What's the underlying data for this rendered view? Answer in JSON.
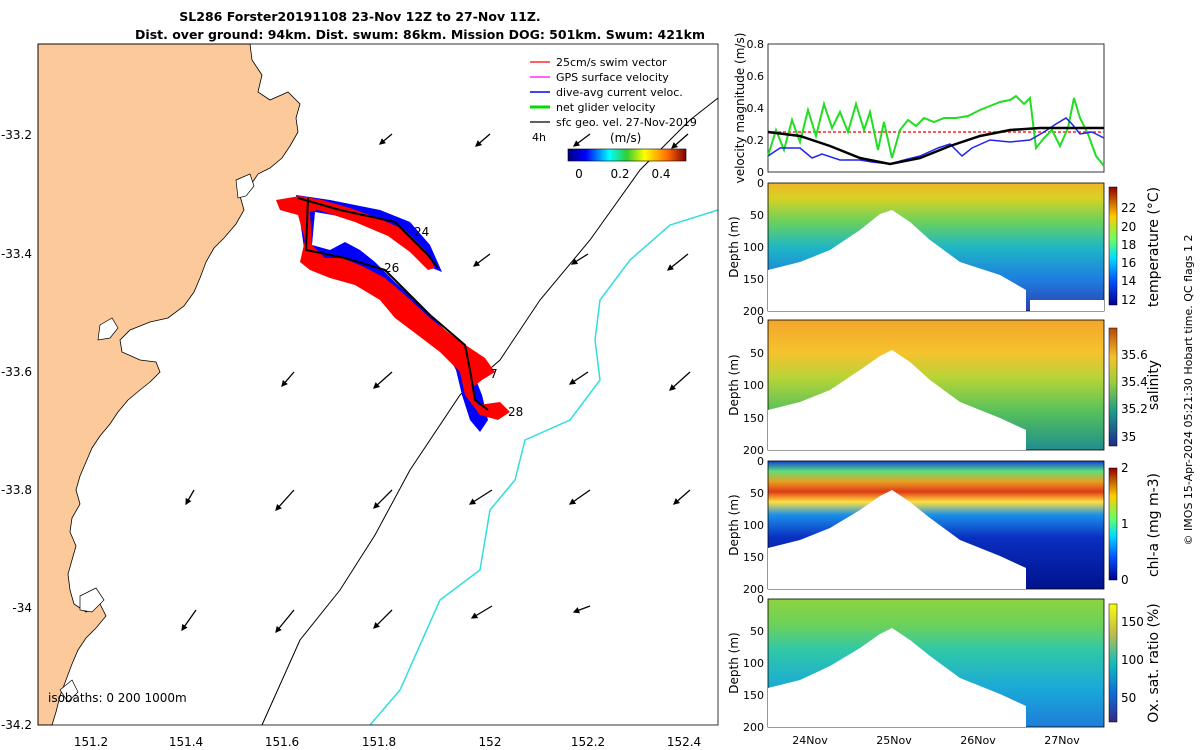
{
  "title": {
    "line1": "SL286 Forster20191108 23-Nov 12Z to 27-Nov 11Z.",
    "line2": "Dist. over ground: 94km. Dist. swum: 86km. Mission DOG: 501km. Swum: 421km"
  },
  "map": {
    "lat_ticks": [
      "-33.2",
      "-33.4",
      "-33.6",
      "-33.8",
      "-34",
      "-34.2"
    ],
    "lon_ticks": [
      "151.2",
      "151.4",
      "151.6",
      "151.8",
      "152",
      "152.2",
      "152.4"
    ],
    "isobaths_label": "isobaths: 0   200   1000m",
    "day_markers": [
      "24",
      "26",
      "7",
      "28"
    ],
    "colors": {
      "land": "#FBC99A",
      "isobath_200": "#000000",
      "isobath_1000": "#33DDDD",
      "swim": "#FF0000",
      "current": "#0000FF"
    }
  },
  "legend": {
    "items": [
      {
        "label": "25cm/s swim vector",
        "color": "#FF0000"
      },
      {
        "label": "GPS surface velocity",
        "color": "#FF00FF"
      },
      {
        "label": "dive-avg current veloc.",
        "color": "#0000FF"
      },
      {
        "label": "net glider velocity",
        "color": "#00DD00"
      },
      {
        "label": "sfc geo. vel. 27-Nov-2019",
        "color": "#000000"
      }
    ],
    "time_label": "4h",
    "colorbar_title": "(m/s)",
    "colorbar_ticks": [
      "0",
      "0.2",
      "0.4"
    ]
  },
  "panels": {
    "velocity": {
      "ylabel": "velocity magnitude (m/s)",
      "yticks": [
        "0",
        "0.2",
        "0.4",
        "0.6",
        "0.8"
      ]
    },
    "temperature": {
      "ylabel": "Depth (m)",
      "clabel": "temperature (°C)",
      "cticks": [
        "22",
        "20",
        "18",
        "16",
        "14",
        "12"
      ],
      "yticks": [
        "0",
        "50",
        "100",
        "150",
        "200"
      ]
    },
    "salinity": {
      "ylabel": "Depth (m)",
      "clabel": "salinity",
      "cticks": [
        "35.6",
        "35.4",
        "35.2",
        "35"
      ],
      "yticks": [
        "0",
        "50",
        "100",
        "150",
        "200"
      ]
    },
    "chla": {
      "ylabel": "Depth (m)",
      "clabel": "chl-a (mg m-3)",
      "cticks": [
        "2",
        "1",
        "0"
      ],
      "yticks": [
        "0",
        "50",
        "100",
        "150",
        "200"
      ]
    },
    "oxygen": {
      "ylabel": "Depth (m)",
      "clabel": "Ox. sat. ratio (%)",
      "cticks": [
        "150",
        "100",
        "50"
      ],
      "yticks": [
        "0",
        "50",
        "100",
        "150",
        "200"
      ]
    },
    "date_ticks": [
      "24Nov",
      "25Nov",
      "26Nov",
      "27Nov"
    ]
  },
  "footer": "© IMOS 15-Apr-2024 05:21:30 Hobart time. QC flags 1  2"
}
